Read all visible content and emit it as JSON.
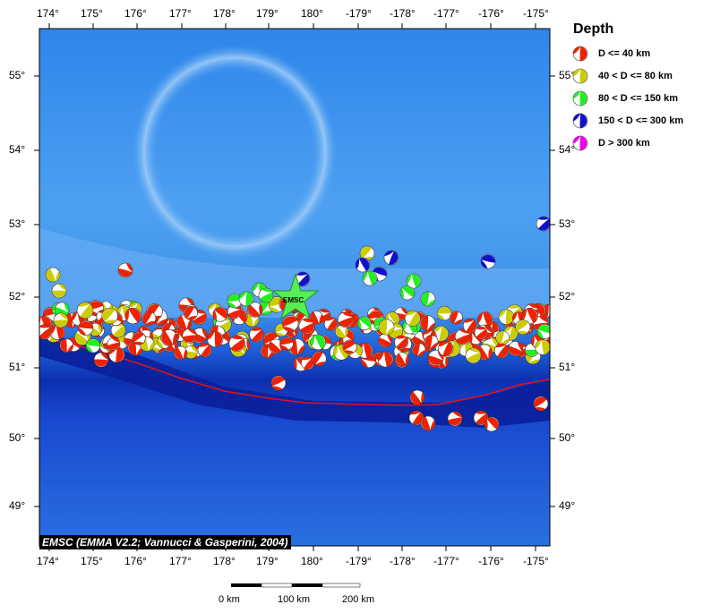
{
  "map": {
    "longitude_labels": [
      "174°",
      "175°",
      "176°",
      "177°",
      "178°",
      "179°",
      "180°",
      "-179°",
      "-178°",
      "-177°",
      "-176°",
      "-175°"
    ],
    "latitude_labels": [
      "55°",
      "54°",
      "53°",
      "52°",
      "51°",
      "50°",
      "49°"
    ],
    "epicenter_label": "EMSC",
    "credit": "EMSC (EMMA V2.2; Vannucci & Gasperini, 2004)",
    "colors": {
      "ocean_shallow": "#4a9cf0",
      "ocean_deep": "#1133cc",
      "trench": "#0a1f9a",
      "plate_boundary": "#e01515",
      "epicenter": "#55ee55"
    }
  },
  "legend": {
    "title": "Depth",
    "items": [
      {
        "label": "D <= 40 km",
        "color": "#ee2200"
      },
      {
        "label": "40 < D <= 80 km",
        "color": "#cccc00"
      },
      {
        "label": "80 < D <= 150 km",
        "color": "#22ee22"
      },
      {
        "label": "150 < D <= 300 km",
        "color": "#1111cc"
      },
      {
        "label": "D > 300 km",
        "color": "#ee00ee"
      }
    ]
  },
  "scale_bar": {
    "labels": [
      "0 km",
      "100 km",
      "200 km"
    ]
  }
}
